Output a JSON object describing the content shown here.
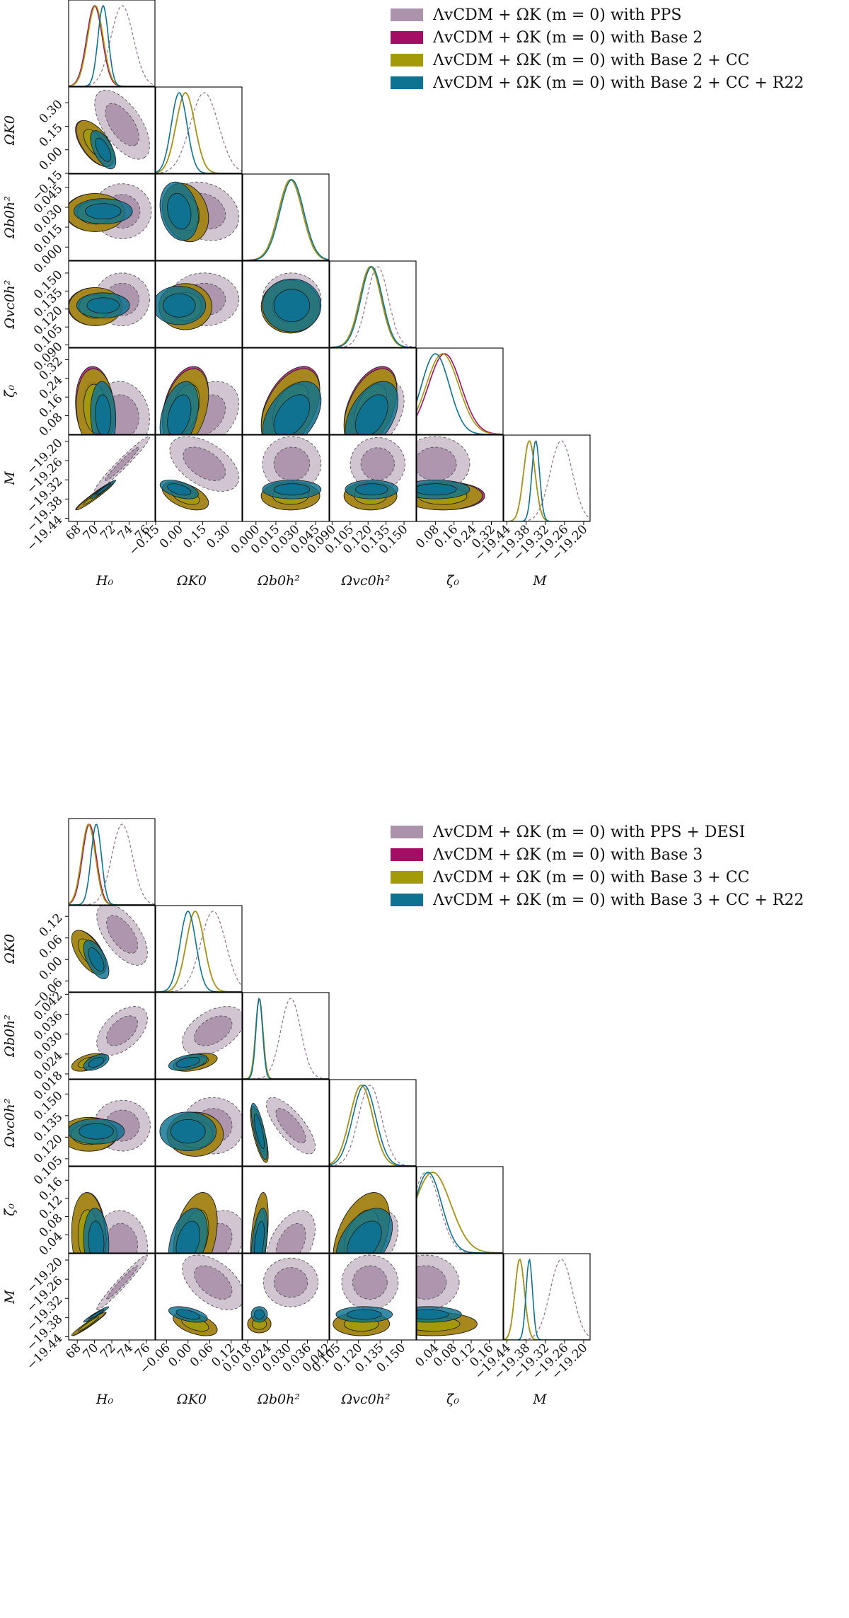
{
  "colors": {
    "pps": "#8f6f8f",
    "base": "#a30d63",
    "cc": "#a39a0a",
    "r22": "#0e7291"
  },
  "figures": [
    {
      "legend": [
        "ΛvCDM + ΩK (m = 0) with PPS",
        "ΛvCDM + ΩK (m = 0) with Base 2",
        "ΛvCDM + ΩK (m = 0) with Base 2 + CC",
        "ΛvCDM + ΩK (m = 0) with Base 2 + CC + R22"
      ],
      "params": [
        {
          "label": "H₀",
          "ticks": [
            "68",
            "70",
            "72",
            "74",
            "76"
          ]
        },
        {
          "label": "ΩK0",
          "ticks": [
            "−0.15",
            "0.00",
            "0.15",
            "0.30"
          ]
        },
        {
          "label": "Ωb0h²",
          "ticks": [
            "0.000",
            "0.015",
            "0.030",
            "0.045"
          ]
        },
        {
          "label": "Ωvc0h²",
          "ticks": [
            "0.090",
            "0.105",
            "0.120",
            "0.135",
            "0.150"
          ]
        },
        {
          "label": "ζ̃₀",
          "ticks": [
            "0.08",
            "0.16",
            "0.24",
            "0.32"
          ]
        },
        {
          "label": "M",
          "ticks": [
            "−19.44",
            "−19.38",
            "−19.32",
            "−19.26",
            "−19.20"
          ]
        }
      ]
    },
    {
      "legend": [
        "ΛvCDM + ΩK (m = 0) with PPS + DESI",
        "ΛvCDM + ΩK (m = 0) with Base 3",
        "ΛvCDM + ΩK (m = 0) with Base 3 + CC",
        "ΛvCDM + ΩK (m = 0) with Base 3 + CC + R22"
      ],
      "params": [
        {
          "label": "H₀",
          "ticks": [
            "68",
            "70",
            "72",
            "74",
            "76"
          ]
        },
        {
          "label": "ΩK0",
          "ticks": [
            "−0.06",
            "0.00",
            "0.06",
            "0.12"
          ]
        },
        {
          "label": "Ωb0h²",
          "ticks": [
            "0.018",
            "0.024",
            "0.030",
            "0.036",
            "0.042"
          ]
        },
        {
          "label": "Ωvc0h²",
          "ticks": [
            "0.105",
            "0.120",
            "0.135",
            "0.150"
          ]
        },
        {
          "label": "ζ̃₀",
          "ticks": [
            "0.04",
            "0.08",
            "0.12",
            "0.16"
          ]
        },
        {
          "label": "M",
          "ticks": [
            "−19.44",
            "−19.38",
            "−19.32",
            "−19.26",
            "−19.20"
          ]
        }
      ]
    }
  ],
  "chart_data": [
    {
      "type": "triangle-corner-plot",
      "parameters": [
        "H0",
        "Omega_K0",
        "Omega_b0 h^2",
        "Omega_vc0 h^2",
        "zeta_0",
        "M"
      ],
      "series": [
        {
          "name": "ΛvCDM + ΩK (m = 0) with PPS",
          "style": "dashed",
          "mean": [
            73.2,
            0.16,
            0.027,
            0.128,
            0.08,
            -19.27
          ],
          "sigma": [
            1.3,
            0.09,
            0.009,
            0.009,
            0.06,
            0.035
          ]
        },
        {
          "name": "ΛvCDM + ΩK (m = 0) with Base 2",
          "mean": [
            70.0,
            0.04,
            0.026,
            0.122,
            0.12,
            -19.37
          ],
          "sigma": [
            0.9,
            0.06,
            0.009,
            0.009,
            0.07,
            0.018
          ]
        },
        {
          "name": "ΛvCDM + ΩK (m = 0) with Base 2 + CC",
          "mean": [
            70.1,
            0.04,
            0.026,
            0.122,
            0.11,
            -19.37
          ],
          "sigma": [
            0.9,
            0.06,
            0.009,
            0.009,
            0.07,
            0.018
          ]
        },
        {
          "name": "ΛvCDM + ΩK (m = 0) with Base 2 + CC + R22",
          "mean": [
            71.0,
            0.0,
            0.027,
            0.123,
            0.08,
            -19.35
          ],
          "sigma": [
            0.6,
            0.05,
            0.009,
            0.009,
            0.06,
            0.012
          ]
        }
      ],
      "ranges": [
        [
          67,
          77
        ],
        [
          -0.15,
          0.4
        ],
        [
          -0.01,
          0.055
        ],
        [
          0.088,
          0.16
        ],
        [
          0.0,
          0.37
        ],
        [
          -19.45,
          -19.18
        ]
      ],
      "ticks": [
        [
          68,
          70,
          72,
          74,
          76
        ],
        [
          -0.15,
          0.0,
          0.15,
          0.3
        ],
        [
          0.0,
          0.015,
          0.03,
          0.045
        ],
        [
          0.09,
          0.105,
          0.12,
          0.135,
          0.15
        ],
        [
          0.08,
          0.16,
          0.24,
          0.32
        ],
        [
          -19.44,
          -19.38,
          -19.32,
          -19.26,
          -19.2
        ]
      ]
    },
    {
      "type": "triangle-corner-plot",
      "parameters": [
        "H0",
        "Omega_K0",
        "Omega_b0 h^2",
        "Omega_vc0 h^2",
        "zeta_0",
        "M"
      ],
      "series": [
        {
          "name": "ΛvCDM + ΩK (m = 0) with PPS + DESI",
          "style": "dashed",
          "mean": [
            73.2,
            0.07,
            0.031,
            0.128,
            0.02,
            -19.27
          ],
          "sigma": [
            1.2,
            0.035,
            0.003,
            0.008,
            0.03,
            0.035
          ]
        },
        {
          "name": "ΛvCDM + ΩK (m = 0) with Base 3",
          "mean": [
            69.4,
            0.02,
            0.0215,
            0.122,
            0.035,
            -19.4
          ],
          "sigma": [
            0.8,
            0.025,
            0.0011,
            0.008,
            0.04,
            0.015
          ]
        },
        {
          "name": "ΛvCDM + ΩK (m = 0) with Base 3 + CC",
          "mean": [
            69.3,
            0.02,
            0.0215,
            0.122,
            0.035,
            -19.4
          ],
          "sigma": [
            0.8,
            0.025,
            0.0011,
            0.008,
            0.04,
            0.015
          ]
        },
        {
          "name": "ΛvCDM + ΩK (m = 0) with Base 3 + CC + R22",
          "mean": [
            70.2,
            0.0,
            0.0215,
            0.124,
            0.025,
            -19.37
          ],
          "sigma": [
            0.6,
            0.022,
            0.001,
            0.008,
            0.03,
            0.01
          ]
        }
      ],
      "ranges": [
        [
          67,
          77
        ],
        [
          -0.09,
          0.15
        ],
        [
          0.0165,
          0.0425
        ],
        [
          0.1,
          0.16
        ],
        [
          0.0,
          0.19
        ],
        [
          -19.45,
          -19.18
        ]
      ],
      "ticks": [
        [
          68,
          70,
          72,
          74,
          76
        ],
        [
          -0.06,
          0.0,
          0.06,
          0.12
        ],
        [
          0.018,
          0.024,
          0.03,
          0.036,
          0.042
        ],
        [
          0.105,
          0.12,
          0.135,
          0.15
        ],
        [
          0.04,
          0.08,
          0.12,
          0.16
        ],
        [
          -19.44,
          -19.38,
          -19.32,
          -19.26,
          -19.2
        ]
      ]
    }
  ]
}
